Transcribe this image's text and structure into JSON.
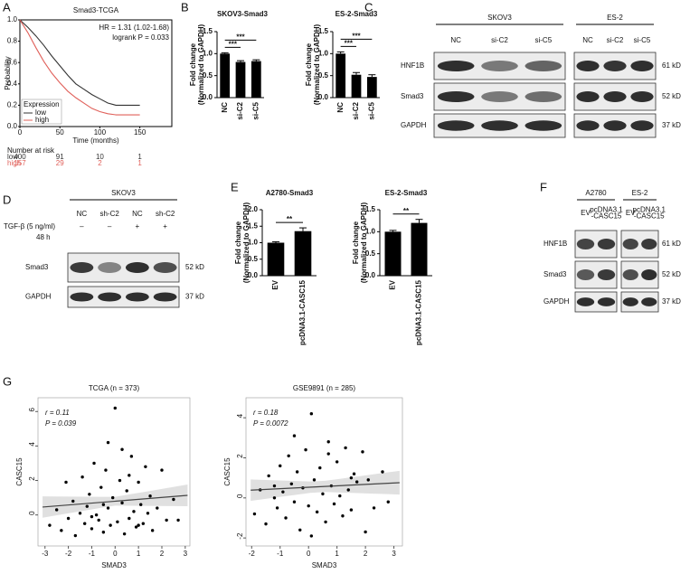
{
  "panel_labels": [
    "A",
    "B",
    "C",
    "D",
    "E",
    "F",
    "G"
  ],
  "chart_data": [
    {
      "type": "line",
      "title": "Smad3-TCGA",
      "xlabel": "Time (months)",
      "ylabel": "Probability",
      "annotations": [
        "HR = 1.31 (1.02-1.68)",
        "logrank P = 0.033"
      ],
      "legend_title": "Expression",
      "xlim": [
        0,
        190
      ],
      "xticks": [
        0,
        50,
        100,
        150
      ],
      "ylim": [
        0,
        1
      ],
      "yticks": [
        {
          "value": 0,
          "label": "0.0"
        },
        {
          "value": 0.2,
          "label": "0.2"
        },
        {
          "value": 0.4,
          "label": "0.4"
        },
        {
          "value": 0.6,
          "label": "0.6"
        },
        {
          "value": 0.8,
          "label": "0.8"
        },
        {
          "value": 1,
          "label": "1.0"
        }
      ],
      "x": [
        0,
        10,
        20,
        30,
        40,
        50,
        60,
        70,
        80,
        90,
        100,
        110,
        120,
        150
      ],
      "series": [
        {
          "name": "low",
          "color": "#333333",
          "values": [
            1,
            0.93,
            0.85,
            0.76,
            0.66,
            0.57,
            0.48,
            0.4,
            0.35,
            0.3,
            0.26,
            0.22,
            0.2,
            0.2
          ]
        },
        {
          "name": "high",
          "color": "#e0605a",
          "values": [
            1,
            0.88,
            0.74,
            0.61,
            0.5,
            0.41,
            0.33,
            0.27,
            0.22,
            0.17,
            0.14,
            0.12,
            0.11,
            0.11
          ]
        }
      ],
      "risk_title": "Number at risk",
      "risk_rows": [
        {
          "name": "low",
          "values": [
            400,
            91,
            10,
            1
          ]
        },
        {
          "name": "high",
          "values": [
            157,
            29,
            2,
            1
          ]
        }
      ]
    },
    {
      "type": "bar",
      "title": "SKOV3-Smad3",
      "ylabel": [
        "Fold change",
        "(Normalized to GAPDH)"
      ],
      "categories": [
        "NC",
        "si-C2",
        "si-C5"
      ],
      "values": [
        1.0,
        0.81,
        0.83
      ],
      "errors": [
        0.02,
        0.03,
        0.03
      ],
      "color": "#000000",
      "ylim": [
        0,
        1.5
      ],
      "yticks": [
        {
          "value": 0,
          "label": "0.0"
        },
        {
          "value": 0.5,
          "label": "0.5"
        },
        {
          "value": 1,
          "label": "1.0"
        },
        {
          "value": 1.5,
          "label": "1.5"
        }
      ],
      "significance": [
        "***",
        "***"
      ]
    },
    {
      "type": "bar",
      "title": "ES-2-Smad3",
      "ylabel": [
        "Fold change",
        "(Normalized to GAPDH)"
      ],
      "categories": [
        "NC",
        "si-C2",
        "si-C5"
      ],
      "values": [
        1.0,
        0.52,
        0.47
      ],
      "errors": [
        0.04,
        0.05,
        0.05
      ],
      "color": "#000000",
      "ylim": [
        0,
        1.5
      ],
      "yticks": [
        {
          "value": 0,
          "label": "0.0"
        },
        {
          "value": 0.5,
          "label": "0.5"
        },
        {
          "value": 1,
          "label": "1.0"
        },
        {
          "value": 1.5,
          "label": "1.5"
        }
      ],
      "significance": [
        "***",
        "***"
      ]
    },
    {
      "type": "bar",
      "title": "A2780-Smad3",
      "ylabel": [
        "Fold change",
        "(Normalized to GAPDH)"
      ],
      "categories": [
        "EV",
        "pcDNA3.1-CASC15"
      ],
      "values": [
        1.0,
        1.35
      ],
      "errors": [
        0.03,
        0.1
      ],
      "color": "#000000",
      "ylim": [
        0,
        2
      ],
      "yticks": [
        {
          "value": 0,
          "label": "0.0"
        },
        {
          "value": 0.5,
          "label": "0.5"
        },
        {
          "value": 1,
          "label": "1.0"
        },
        {
          "value": 1.5,
          "label": "1.5"
        },
        {
          "value": 2,
          "label": "2.0"
        }
      ],
      "significance": [
        "**"
      ]
    },
    {
      "type": "bar",
      "title": "ES-2-Smad3",
      "ylabel": [
        "Fold change",
        "(Normalized to GAPDH)"
      ],
      "categories": [
        "EV",
        "pcDNA3.1-CASC15"
      ],
      "values": [
        1.0,
        1.2
      ],
      "errors": [
        0.03,
        0.08
      ],
      "color": "#000000",
      "ylim": [
        0,
        1.5
      ],
      "yticks": [
        {
          "value": 0,
          "label": "0.0"
        },
        {
          "value": 0.5,
          "label": "0.5"
        },
        {
          "value": 1,
          "label": "1.0"
        },
        {
          "value": 1.5,
          "label": "1.5"
        }
      ],
      "significance": [
        "**"
      ]
    },
    {
      "type": "scatter",
      "title": "TCGA (n = 373)",
      "xlabel": "SMAD3",
      "ylabel": "CASC15",
      "annotations": [
        "r = 0.11",
        "P = 0.039"
      ],
      "color": "#000000",
      "xlim": [
        -3.3,
        3.2
      ],
      "xticks": [
        -3,
        -2,
        -1,
        0,
        1,
        2,
        3
      ],
      "ylim": [
        -1.8,
        6.8
      ],
      "yticks": [
        0,
        2,
        4,
        6
      ],
      "x": [
        -2.8,
        -2.5,
        -2.3,
        -2.1,
        -2.0,
        -1.8,
        -1.7,
        -1.5,
        -1.4,
        -1.3,
        -1.2,
        -1.1,
        -1.0,
        -0.9,
        -0.8,
        -0.7,
        -0.6,
        -0.5,
        -0.4,
        -0.3,
        -0.2,
        -0.1,
        0,
        0.1,
        0.2,
        0.3,
        0.4,
        0.5,
        0.6,
        0.7,
        0.8,
        0.9,
        1.0,
        1.1,
        1.2,
        1.3,
        1.4,
        1.5,
        1.6,
        1.8,
        2.0,
        2.2,
        2.5,
        -0.3,
        0.3,
        -1.0,
        1.0,
        -0.5,
        0.6,
        2.7
      ],
      "values": [
        -0.6,
        0.3,
        -0.9,
        1.9,
        -0.2,
        0.8,
        -1.2,
        0.1,
        2.2,
        -0.5,
        0.5,
        1.2,
        -0.8,
        3.0,
        0.0,
        -0.3,
        1.6,
        -1.0,
        2.6,
        0.4,
        -0.6,
        1.0,
        6.2,
        -0.4,
        2.0,
        0.7,
        -1.1,
        1.4,
        -0.2,
        3.4,
        0.2,
        -0.7,
        1.9,
        0.6,
        -0.5,
        2.8,
        0.1,
        1.1,
        -0.9,
        0.4,
        2.6,
        -0.3,
        0.9,
        4.2,
        3.8,
        -0.1,
        -0.6,
        0.6,
        2.3,
        -0.3
      ]
    },
    {
      "type": "scatter",
      "title": "GSE9891 (n = 285)",
      "xlabel": "SMAD3",
      "ylabel": "CASC15",
      "annotations": [
        "r = 0.18",
        "P = 0.0072"
      ],
      "color": "#000000",
      "xlim": [
        -2.2,
        3.3
      ],
      "xticks": [
        -2,
        -1,
        0,
        1,
        2,
        3
      ],
      "ylim": [
        -2.4,
        5
      ],
      "yticks": [
        -2,
        0,
        2,
        4
      ],
      "x": [
        -1.9,
        -1.7,
        -1.5,
        -1.4,
        -1.2,
        -1.1,
        -1.0,
        -0.9,
        -0.8,
        -0.7,
        -0.6,
        -0.5,
        -0.4,
        -0.3,
        -0.2,
        -0.1,
        0,
        0.1,
        0.2,
        0.3,
        0.4,
        0.5,
        0.6,
        0.7,
        0.8,
        0.9,
        1.0,
        1.1,
        1.2,
        1.3,
        1.4,
        1.5,
        1.6,
        1.7,
        1.9,
        2.0,
        2.1,
        2.3,
        2.6,
        2.8,
        -0.5,
        0.1,
        0.7,
        -1.2,
        1.5
      ],
      "values": [
        -0.8,
        0.4,
        -1.3,
        1.1,
        0.0,
        -0.5,
        1.6,
        0.3,
        -1.0,
        2.1,
        0.7,
        -0.2,
        1.3,
        -1.6,
        0.5,
        2.4,
        -0.4,
        4.2,
        0.9,
        -0.7,
        1.5,
        0.2,
        -1.2,
        2.2,
        0.6,
        -0.3,
        1.8,
        0.1,
        -0.9,
        2.5,
        0.4,
        -0.6,
        1.2,
        0.8,
        2.3,
        -1.7,
        0.9,
        -0.5,
        1.3,
        -0.2,
        3.1,
        -1.9,
        2.8,
        0.6,
        1.0
      ]
    }
  ],
  "blots": {
    "C": {
      "groups": [
        "SKOV3",
        "ES-2"
      ],
      "lanes": [
        [
          [
            "NC"
          ],
          [
            "si-C2"
          ],
          [
            "si-C5"
          ]
        ],
        [
          [
            "NC"
          ],
          [
            "si-C2"
          ],
          [
            "si-C5"
          ]
        ]
      ],
      "rows": [
        "HNF1B",
        "Smad3",
        "GAPDH"
      ],
      "sizes": [
        "61 kD",
        "52 kD",
        "37 kD"
      ]
    },
    "D": {
      "groups": [
        "SKOV3"
      ],
      "lanes": [
        [
          [
            "NC"
          ],
          [
            "sh-C2"
          ],
          [
            "NC"
          ],
          [
            "sh-C2"
          ]
        ]
      ],
      "treatment_label": [
        "TGF-β (5 ng/ml)",
        "48 h"
      ],
      "treatment": [
        "–",
        "–",
        "+",
        "+"
      ],
      "rows": [
        "Smad3",
        "GAPDH"
      ],
      "sizes": [
        "52 kD",
        "37 kD"
      ]
    },
    "F": {
      "groups": [
        "A2780",
        "ES-2"
      ],
      "lanes": [
        [
          [
            "EV"
          ],
          [
            "pcDNA3.1",
            "-CASC15"
          ]
        ],
        [
          [
            "EV"
          ],
          [
            "pcDNA3.1",
            "-CASC15"
          ]
        ]
      ],
      "rows": [
        "HNF1B",
        "Smad3",
        "GAPDH"
      ],
      "sizes": [
        "61 kD",
        "52 kD",
        "37 kD"
      ]
    }
  }
}
